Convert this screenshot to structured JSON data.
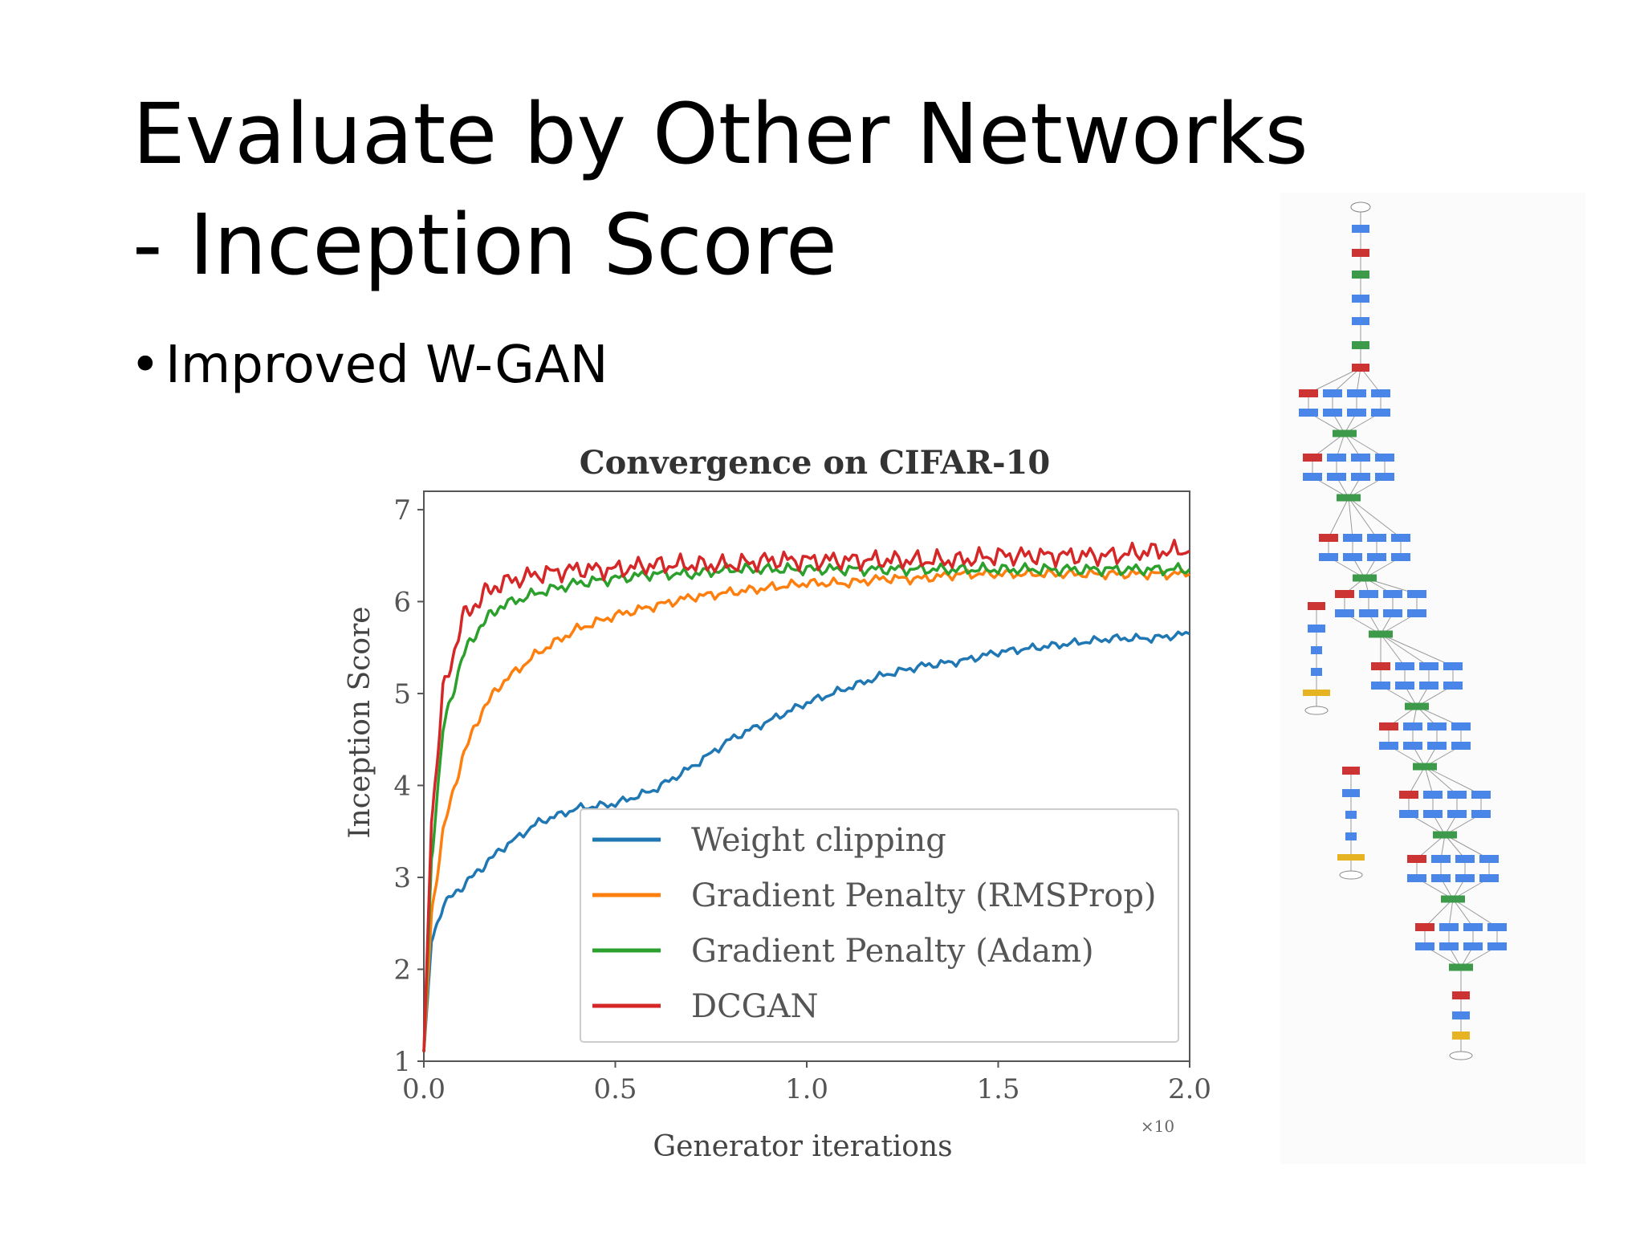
{
  "slide": {
    "title_line1": "Evaluate by Other Networks",
    "title_line2": "- Inception Score",
    "bullet": "Improved W-GAN"
  },
  "colors": {
    "weight_clipping": "#1f77b4",
    "gp_rmsprop": "#ff7f0e",
    "gp_adam": "#2ca02c",
    "dcgan": "#d62728",
    "net_blue": "#4a86e8",
    "net_red": "#cc3333",
    "net_green": "#3c9a4a",
    "net_yellow": "#e6b422"
  },
  "chart_data": {
    "type": "line",
    "title": "Convergence on CIFAR-10",
    "xlabel": "Generator iterations",
    "ylabel": "Inception Score",
    "x_multiplier_label": "×10",
    "xlim": [
      0,
      2.0
    ],
    "ylim": [
      1,
      7.2
    ],
    "xticks": [
      "0.0",
      "0.5",
      "1.0",
      "1.5",
      "2.0"
    ],
    "yticks": [
      "1",
      "2",
      "3",
      "4",
      "5",
      "6",
      "7"
    ],
    "legend_position": "lower-right",
    "grid": false,
    "x": [
      0.0,
      0.02,
      0.05,
      0.1,
      0.15,
      0.2,
      0.3,
      0.4,
      0.5,
      0.6,
      0.7,
      0.8,
      0.9,
      1.0,
      1.1,
      1.2,
      1.3,
      1.4,
      1.5,
      1.6,
      1.7,
      1.8,
      1.9,
      2.0
    ],
    "series": [
      {
        "name": "Weight clipping",
        "values": [
          1.1,
          2.3,
          2.7,
          2.9,
          3.1,
          3.3,
          3.6,
          3.75,
          3.8,
          3.95,
          4.2,
          4.5,
          4.7,
          4.9,
          5.05,
          5.2,
          5.3,
          5.35,
          5.45,
          5.5,
          5.55,
          5.6,
          5.6,
          5.65
        ]
      },
      {
        "name": "Gradient Penalty (RMSProp)",
        "values": [
          1.1,
          2.6,
          3.5,
          4.3,
          4.8,
          5.1,
          5.45,
          5.7,
          5.85,
          5.95,
          6.05,
          6.1,
          6.15,
          6.2,
          6.2,
          6.25,
          6.25,
          6.3,
          6.3,
          6.3,
          6.3,
          6.3,
          6.3,
          6.3
        ]
      },
      {
        "name": "Gradient Penalty (Adam)",
        "values": [
          1.1,
          3.2,
          4.6,
          5.4,
          5.75,
          5.95,
          6.1,
          6.2,
          6.25,
          6.3,
          6.3,
          6.35,
          6.35,
          6.35,
          6.35,
          6.35,
          6.35,
          6.35,
          6.35,
          6.35,
          6.35,
          6.35,
          6.35,
          6.35
        ]
      },
      {
        "name": "DCGAN",
        "values": [
          1.1,
          3.6,
          5.0,
          5.8,
          6.05,
          6.2,
          6.3,
          6.35,
          6.35,
          6.4,
          6.4,
          6.4,
          6.45,
          6.45,
          6.45,
          6.45,
          6.45,
          6.45,
          6.5,
          6.5,
          6.5,
          6.5,
          6.55,
          6.55
        ]
      }
    ]
  }
}
